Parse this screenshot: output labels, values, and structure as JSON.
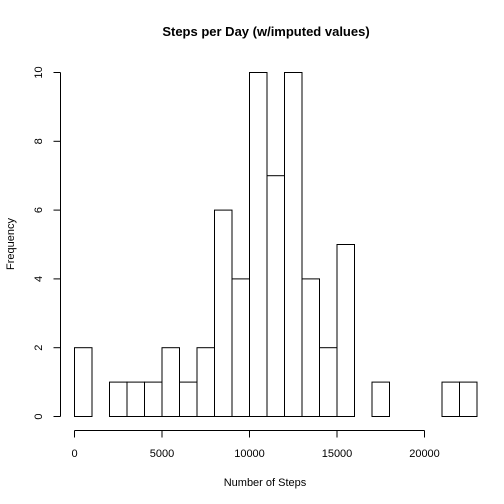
{
  "chart_data": {
    "type": "histogram",
    "title": "Steps per Day (w/imputed values)",
    "xlabel": "Number of Steps",
    "ylabel": "Frequency",
    "bin_width": 1000,
    "bins": [
      {
        "start": 0,
        "end": 1000,
        "count": 2
      },
      {
        "start": 1000,
        "end": 2000,
        "count": 0
      },
      {
        "start": 2000,
        "end": 3000,
        "count": 1
      },
      {
        "start": 3000,
        "end": 4000,
        "count": 1
      },
      {
        "start": 4000,
        "end": 5000,
        "count": 1
      },
      {
        "start": 5000,
        "end": 6000,
        "count": 2
      },
      {
        "start": 6000,
        "end": 7000,
        "count": 1
      },
      {
        "start": 7000,
        "end": 8000,
        "count": 2
      },
      {
        "start": 8000,
        "end": 9000,
        "count": 6
      },
      {
        "start": 9000,
        "end": 10000,
        "count": 4
      },
      {
        "start": 10000,
        "end": 11000,
        "count": 10
      },
      {
        "start": 11000,
        "end": 12000,
        "count": 7
      },
      {
        "start": 12000,
        "end": 13000,
        "count": 10
      },
      {
        "start": 13000,
        "end": 14000,
        "count": 4
      },
      {
        "start": 14000,
        "end": 15000,
        "count": 2
      },
      {
        "start": 15000,
        "end": 16000,
        "count": 5
      },
      {
        "start": 16000,
        "end": 17000,
        "count": 0
      },
      {
        "start": 17000,
        "end": 18000,
        "count": 1
      },
      {
        "start": 18000,
        "end": 19000,
        "count": 0
      },
      {
        "start": 19000,
        "end": 20000,
        "count": 0
      },
      {
        "start": 20000,
        "end": 21000,
        "count": 0
      },
      {
        "start": 21000,
        "end": 22000,
        "count": 1
      },
      {
        "start": 22000,
        "end": 23000,
        "count": 1
      }
    ],
    "xlim": [
      0,
      23000
    ],
    "ylim": [
      0,
      10
    ],
    "x_ticks": [
      0,
      5000,
      10000,
      15000,
      20000
    ],
    "x_tick_labels": [
      "0",
      "5000",
      "10000",
      "15000",
      "20000"
    ],
    "y_ticks": [
      0,
      2,
      4,
      6,
      8,
      10
    ],
    "y_tick_labels": [
      "0",
      "2",
      "4",
      "6",
      "8",
      "10"
    ],
    "grid": false,
    "colors": {
      "bar_fill": "#ffffff",
      "bar_stroke": "#000000"
    }
  }
}
